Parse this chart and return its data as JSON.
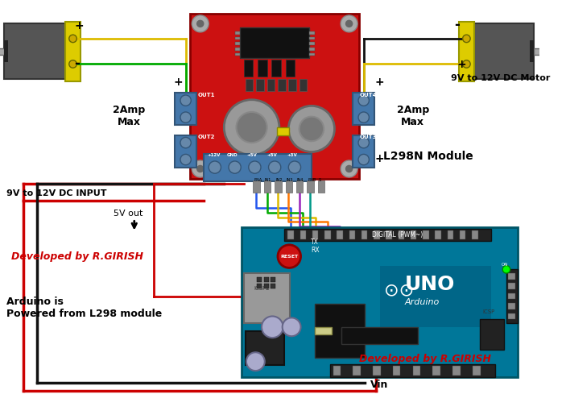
{
  "bg_color": "#ffffff",
  "label_9v_input": "9V to 12V DC INPUT",
  "label_9v_motor": "9V to 12V DC Motor",
  "label_2amp_left": "2Amp\nMax",
  "label_2amp_right": "2Amp\nMax",
  "label_l298n": "L298N Module",
  "label_5vout": "5V out",
  "label_vin": "Vin",
  "label_dev1": "Developed by R.GIRISH",
  "label_dev2": "Developed by R.GIRISH",
  "label_arduino": "Arduino is\nPowered from L298 module",
  "motor_gray": "#555555",
  "motor_gray2": "#444444",
  "motor_dark": "#333333",
  "yellow_color": "#ddcc00",
  "l298n_red": "#cc1111",
  "l298n_blue": "#4477aa",
  "l298n_blue2": "#5588bb",
  "arduino_teal": "#007799",
  "arduino_teal2": "#005566",
  "black": "#000000",
  "red_wire": "#cc0000",
  "black_wire": "#111111",
  "green_wire": "#00aa00",
  "yellow_wire": "#ddbb00",
  "blue_wire": "#2255ee",
  "orange_wire": "#ff7700",
  "purple_wire": "#9922bb",
  "gray_wire": "#888888",
  "teal_wire": "#009988",
  "white": "#ffffff",
  "gray1": "#aaaaaa",
  "gray2": "#888888",
  "gray3": "#666666",
  "gray4": "#444444",
  "ic_black": "#111111",
  "screw_gray": "#6688aa",
  "screw_edge": "#335577"
}
